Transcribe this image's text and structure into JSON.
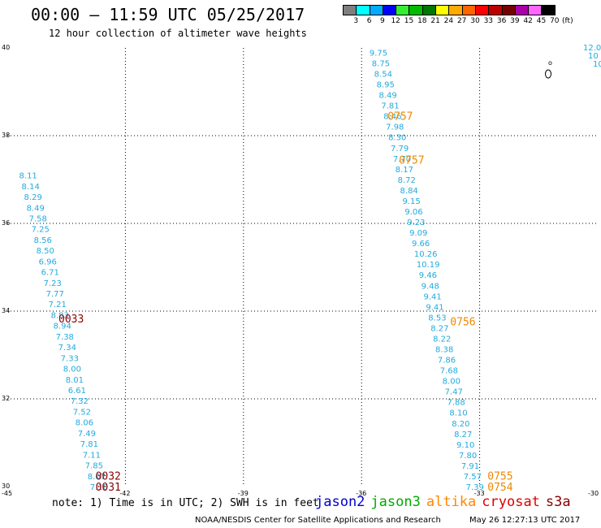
{
  "header": {
    "title": "00:00 — 11:59 UTC 05/25/2017",
    "subtitle": "12 hour collection of altimeter wave heights"
  },
  "legend": {
    "unit": "(ft)",
    "bins": [
      {
        "label": "3",
        "color": "#7f7f7f"
      },
      {
        "label": "6",
        "color": "#00ffff"
      },
      {
        "label": "9",
        "color": "#00aaff"
      },
      {
        "label": "12",
        "color": "#0000ff"
      },
      {
        "label": "15",
        "color": "#33ee33"
      },
      {
        "label": "18",
        "color": "#00bb00"
      },
      {
        "label": "21",
        "color": "#007700"
      },
      {
        "label": "24",
        "color": "#ffff00"
      },
      {
        "label": "27",
        "color": "#ffaa00"
      },
      {
        "label": "30",
        "color": "#ff6600"
      },
      {
        "label": "33",
        "color": "#ff0000"
      },
      {
        "label": "36",
        "color": "#bb0000"
      },
      {
        "label": "39",
        "color": "#770000"
      },
      {
        "label": "42",
        "color": "#aa00aa"
      },
      {
        "label": "45",
        "color": "#ff66ff"
      },
      {
        "label": "70",
        "color": "#000000"
      }
    ]
  },
  "map": {
    "lon_range": [
      -45,
      -30
    ],
    "lat_range": [
      30,
      40
    ],
    "lon_ticks": [
      "-45",
      "-42",
      "-39",
      "-36",
      "-33",
      "-30"
    ],
    "lat_ticks": [
      "40",
      "38",
      "36",
      "34",
      "32",
      "30"
    ],
    "tracks": [
      {
        "name": "track-west",
        "start": [
          -44.7,
          37.1
        ],
        "end": [
          -42.9,
          30.0
        ],
        "values": [
          "8.11",
          "8.14",
          "8.29",
          "8.49",
          "7.58",
          "7.25",
          "8.56",
          "8.50",
          "6.96",
          "6.71",
          "7.23",
          "7.77",
          "7.21",
          "8.83",
          "8.94",
          "7.38",
          "7.34",
          "7.33",
          "8.00",
          "8.01",
          "6.61",
          "7.32",
          "7.52",
          "8.06",
          "7.49",
          "7.81",
          "7.11",
          "7.85",
          "8.07",
          "7.10"
        ],
        "colors": {}
      },
      {
        "name": "track-north",
        "start": [
          -35.8,
          39.9
        ],
        "end": [
          -35.2,
          38.9
        ],
        "values": [
          "9.75",
          "8.75",
          "8.54",
          "8.95",
          "8.49",
          "7.81",
          "8.46",
          "7.98",
          "8.30",
          "7.79",
          "7.70",
          "8.17",
          "8.72",
          "8.84",
          "9.15",
          "9.06",
          "9.23",
          "9.09",
          "9.66",
          "10.26",
          "10.19",
          "9.46",
          "9.48",
          "9.41",
          "9.41",
          "8.53",
          "8.27",
          "8.22",
          "8.38",
          "7.86",
          "7.68",
          "8.00",
          "7.47",
          "7.88",
          "8.10",
          "8.20",
          "8.27",
          "9.10",
          "7.80",
          "7.91",
          "7.57",
          "7.39"
        ],
        "colors": {
          "0": "#22aadd",
          "14": "#000099",
          "15": "#000099",
          "16": "#000099",
          "17": "#000099",
          "18": "#000099",
          "19": "#000099",
          "20": "#000099",
          "21": "#000099",
          "22": "#000099",
          "23": "#000099",
          "24": "#000099",
          "37": "#000099"
        }
      }
    ],
    "times": [
      {
        "text": "0757",
        "lon": -35.34,
        "lat": 38.45,
        "color": "#ee8800"
      },
      {
        "text": "0757",
        "lon": -35.05,
        "lat": 37.45,
        "color": "#ee8800"
      },
      {
        "text": "0033",
        "lon": -43.7,
        "lat": 33.83,
        "color": "#880000"
      },
      {
        "text": "0756",
        "lon": -33.75,
        "lat": 33.77,
        "color": "#ee8800"
      },
      {
        "text": "0032",
        "lon": -42.76,
        "lat": 30.25,
        "color": "#880000"
      },
      {
        "text": "0031",
        "lon": -42.76,
        "lat": 30.0,
        "color": "#880000"
      },
      {
        "text": "0755",
        "lon": -32.8,
        "lat": 30.25,
        "color": "#ee8800"
      },
      {
        "text": "0754",
        "lon": -32.8,
        "lat": 30.0,
        "color": "#ee8800"
      }
    ],
    "edge_values": [
      {
        "text": "12.0",
        "color": "#33cc33"
      },
      {
        "text": "10",
        "color": "#0000cc"
      },
      {
        "text": "10",
        "color": "#0000cc"
      }
    ],
    "point_marker": "o"
  },
  "footer": {
    "note": "note: 1) Time is in UTC; 2) SWH is in feet",
    "satellites": [
      {
        "name": "jason2",
        "color": "#0000cc"
      },
      {
        "name": "jason3",
        "color": "#00aa00"
      },
      {
        "name": "altika",
        "color": "#ff8800"
      },
      {
        "name": "cryosat",
        "color": "#dd0000"
      },
      {
        "name": "s3a",
        "color": "#880000"
      }
    ],
    "credit": "NOAA/NESDIS Center for Satellite Applications and Research",
    "timestamp": "May 26 12:27:13 UTC 2017"
  }
}
